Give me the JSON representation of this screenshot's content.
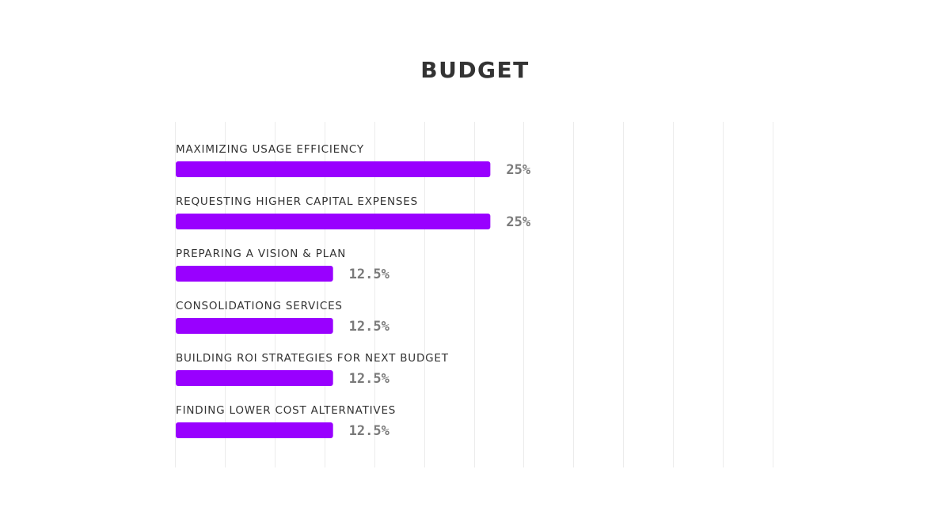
{
  "chart_data": {
    "type": "bar",
    "orientation": "horizontal",
    "title": "BUDGET",
    "categories": [
      "MAXIMIZING USAGE EFFICIENCY",
      "REQUESTING HIGHER CAPITAL EXPENSES",
      "PREPARING A VISION & PLAN",
      "CONSOLIDATIONG SERVICES",
      "BUILDING ROI STRATEGIES FOR NEXT BUDGET",
      "FINDING LOWER COST ALTERNATIVES"
    ],
    "values": [
      25,
      25,
      12.5,
      12.5,
      12.5,
      12.5
    ],
    "data_labels": [
      "25%",
      "25%",
      "12.5%",
      "12.5%",
      "12.5%",
      "12.5%"
    ],
    "xlim": [
      0,
      47.5
    ],
    "grid": true,
    "legend": "none",
    "colors": {
      "bar": "#9900ff",
      "grid": "#ececec",
      "category_text": "#333333",
      "value_text": "#7a7a7a",
      "title_text": "#333333"
    }
  }
}
